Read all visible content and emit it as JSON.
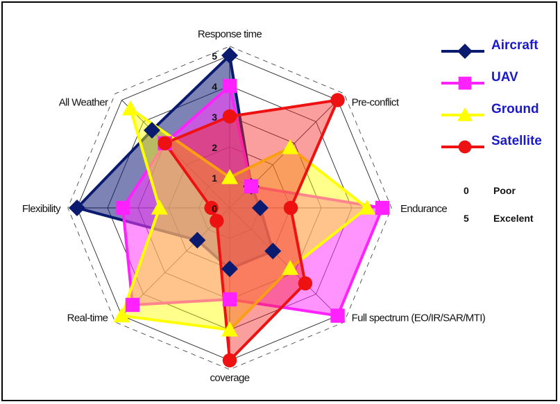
{
  "chart_data": {
    "type": "radar",
    "axes": [
      "Response time",
      "Pre-conflict",
      "Endurance",
      "Full spectrum (EO/IR/SAR/MTI)",
      "coverage",
      "Real-time",
      "Flexibility",
      "All Weather"
    ],
    "scale": {
      "min": 0,
      "max": 5,
      "ticks": [
        0,
        1,
        2,
        3,
        4,
        5
      ]
    },
    "series": [
      {
        "name": "Aircraft",
        "color": "#0a1a6e",
        "fill": "rgba(20,30,120,0.55)",
        "marker": "diamond",
        "values": [
          5,
          1,
          1,
          2,
          2,
          1.5,
          5,
          3.6
        ]
      },
      {
        "name": "UAV",
        "color": "#ff22ff",
        "fill": "rgba(255,60,255,0.55)",
        "marker": "square",
        "values": [
          4,
          1,
          5,
          5,
          3,
          4.5,
          3.5,
          3
        ]
      },
      {
        "name": "Ground",
        "color": "#ffff00",
        "fill": "rgba(255,255,0,0.45)",
        "marker": "triangle",
        "values": [
          1,
          2.8,
          4.5,
          2.8,
          4,
          5,
          2.3,
          4.6
        ]
      },
      {
        "name": "Satellite",
        "color": "#ee1111",
        "fill": "rgba(245,40,40,0.45)",
        "marker": "circle",
        "values": [
          3,
          5,
          2,
          3.5,
          5,
          0.6,
          0.6,
          3
        ]
      }
    ],
    "legend": {
      "placement": "right"
    },
    "notes": [
      {
        "value": "0",
        "label": "Poor"
      },
      {
        "value": "5",
        "label": "Excelent"
      }
    ]
  }
}
